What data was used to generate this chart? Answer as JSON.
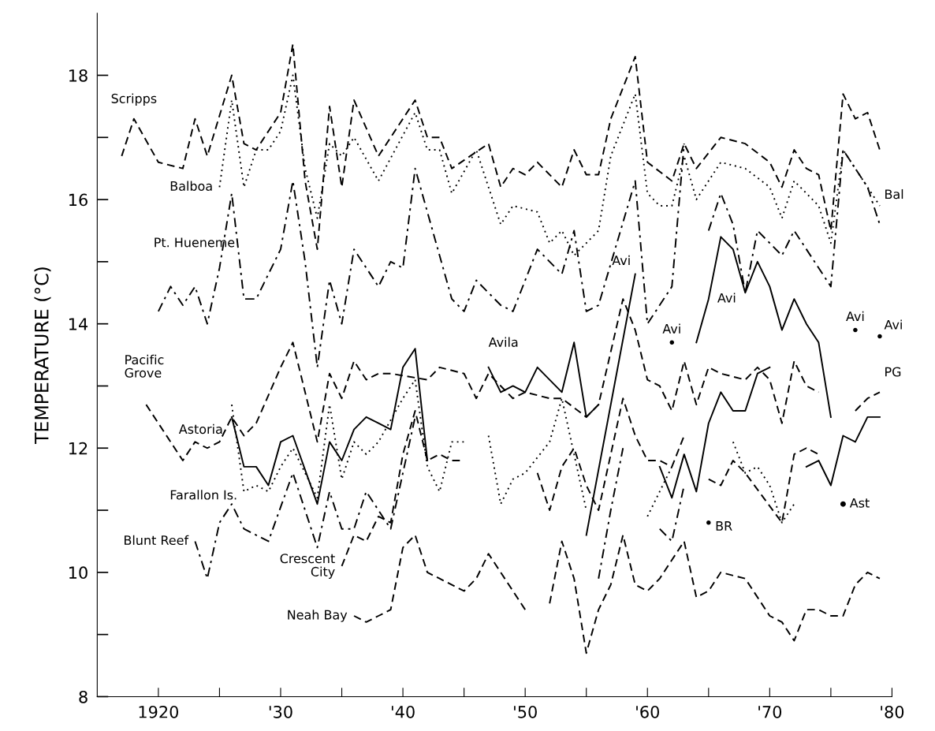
{
  "chart_data": {
    "type": "line",
    "ylabel": "TEMPERATURE (°C)",
    "xlim": [
      1915,
      1980
    ],
    "ylim": [
      8,
      19
    ],
    "xticks": [
      {
        "value": 1920,
        "label": "1920"
      },
      {
        "value": 1925,
        "label": null
      },
      {
        "value": 1930,
        "label": "'30"
      },
      {
        "value": 1935,
        "label": null
      },
      {
        "value": 1940,
        "label": "'40"
      },
      {
        "value": 1945,
        "label": null
      },
      {
        "value": 1950,
        "label": "'50"
      },
      {
        "value": 1955,
        "label": null
      },
      {
        "value": 1960,
        "label": "'60"
      },
      {
        "value": 1965,
        "label": null
      },
      {
        "value": 1970,
        "label": "'70"
      },
      {
        "value": 1975,
        "label": null
      },
      {
        "value": 1980,
        "label": "'80"
      }
    ],
    "yticks": [
      8,
      {
        "value": 9,
        "label": null
      },
      10,
      {
        "value": 11,
        "label": null
      },
      12,
      {
        "value": 13,
        "label": null
      },
      14,
      {
        "value": 15,
        "label": null
      },
      16,
      {
        "value": 17,
        "label": null
      },
      18
    ],
    "grid": false,
    "legend": false,
    "series": [
      {
        "name": "Scripps",
        "color": "#000000",
        "line_style": "dashed",
        "x": [
          1917,
          1918,
          1920,
          1922,
          1923,
          1924,
          1926,
          1927,
          1928,
          1930,
          1931,
          1932,
          1933,
          1934,
          1935,
          1936,
          1938,
          1941,
          1942,
          1943,
          1944,
          1947,
          1948,
          1949,
          1950,
          1951,
          1953,
          1954,
          1955,
          1956,
          1957,
          1959,
          1960,
          1962,
          1963,
          1964,
          1966,
          1968,
          1970,
          1971,
          1972,
          1973,
          1974,
          1975,
          1976,
          1977,
          1978,
          1979
        ],
        "values": [
          16.7,
          17.3,
          16.6,
          16.5,
          17.3,
          16.7,
          18.0,
          16.9,
          16.8,
          17.4,
          18.5,
          16.3,
          15.2,
          17.5,
          16.2,
          17.6,
          16.7,
          17.6,
          17.0,
          17.0,
          16.5,
          16.9,
          16.2,
          16.5,
          16.4,
          16.6,
          16.2,
          16.8,
          16.4,
          16.4,
          17.3,
          18.3,
          16.6,
          16.3,
          16.9,
          16.5,
          17.0,
          16.9,
          16.6,
          16.2,
          16.8,
          16.5,
          16.4,
          15.5,
          17.7,
          17.3,
          17.4,
          16.8
        ]
      },
      {
        "name": "Balboa",
        "color": "#000000",
        "line_style": "dotted",
        "x": [
          1925,
          1926,
          1927,
          1928,
          1929,
          1930,
          1931,
          1932,
          1933,
          1934,
          1935,
          1936,
          1938,
          1941,
          1942,
          1943,
          1944,
          1946,
          1948,
          1949,
          1951,
          1952,
          1953,
          1954,
          1956,
          1957,
          1959,
          1960,
          1961,
          1962,
          1963,
          1964,
          1966,
          1968,
          1970,
          1971,
          1972,
          1974,
          1975,
          1976,
          1979
        ],
        "values": [
          16.2,
          17.6,
          16.2,
          16.8,
          16.8,
          17.1,
          18.0,
          16.5,
          15.7,
          16.9,
          16.7,
          17.0,
          16.3,
          17.4,
          16.8,
          16.8,
          16.1,
          16.8,
          15.6,
          15.9,
          15.8,
          15.3,
          15.5,
          15.1,
          15.5,
          16.7,
          17.7,
          16.1,
          15.9,
          15.9,
          16.7,
          16.0,
          16.6,
          16.5,
          16.2,
          15.7,
          16.3,
          15.9,
          15.3,
          16.8,
          15.9
        ]
      },
      {
        "name": "Pt. Hueneme",
        "color": "#000000",
        "line_style": "dashdot",
        "x": [
          1920,
          1921,
          1922,
          1923,
          1924,
          1925,
          1926,
          1927,
          1928,
          1930,
          1931,
          1932,
          1933,
          1934,
          1935,
          1936,
          1938,
          1939,
          1940,
          1941,
          1944,
          1945,
          1946,
          1948,
          1949,
          1951,
          1953,
          1954,
          1955,
          1956,
          1959,
          1960,
          1962,
          1963,
          1964,
          1965,
          1966,
          1967,
          1968,
          1969,
          1970,
          1971,
          1972,
          1973,
          1974,
          1975,
          1976,
          1977,
          1978,
          1979
        ],
        "values": [
          14.2,
          14.6,
          14.3,
          14.6,
          14.0,
          14.9,
          16.1,
          14.4,
          14.4,
          15.2,
          16.3,
          15.0,
          13.3,
          14.7,
          14.0,
          15.2,
          14.6,
          15.0,
          14.9,
          16.5,
          14.4,
          14.2,
          14.7,
          14.3,
          14.2,
          15.2,
          14.8,
          15.5,
          14.2,
          14.3,
          16.3,
          14.0,
          14.6,
          16.9,
          null,
          15.5,
          16.1,
          15.6,
          14.5,
          15.5,
          15.3,
          15.1,
          15.5,
          15.2,
          14.9,
          14.6,
          16.8,
          16.5,
          16.2,
          15.6
        ]
      },
      {
        "name": "Pacific\nGrove",
        "color": "#000000",
        "line_style": "dashed",
        "x": [
          1919,
          1922,
          1923,
          1924,
          1925,
          1926,
          1927,
          1928,
          1930,
          1931,
          1933,
          1934,
          1935,
          1936,
          1937,
          1938,
          1939,
          1942,
          1943,
          1945,
          1946,
          1947,
          1949,
          1950,
          1952,
          1953,
          1955,
          1956,
          1958,
          1959,
          1960,
          1961,
          1962,
          1963,
          1964,
          1965,
          1966,
          1968,
          1969,
          1970,
          1971,
          1972,
          1973,
          1974,
          1975,
          1977,
          1978,
          1979
        ],
        "values": [
          12.7,
          11.8,
          12.1,
          12.0,
          12.1,
          12.5,
          12.2,
          12.4,
          13.3,
          13.7,
          12.1,
          13.2,
          12.8,
          13.4,
          13.1,
          13.2,
          13.2,
          13.1,
          13.3,
          13.2,
          12.8,
          13.2,
          12.8,
          12.9,
          12.8,
          12.8,
          12.5,
          12.7,
          14.4,
          13.9,
          13.1,
          13.0,
          12.6,
          13.4,
          12.7,
          13.3,
          13.2,
          13.1,
          13.3,
          13.1,
          12.4,
          13.4,
          13.0,
          12.9,
          null,
          12.6,
          12.8,
          12.9
        ]
      },
      {
        "name": "Avila",
        "color": "#000000",
        "line_style": "solid",
        "x": [
          1947,
          1948,
          1949,
          1950,
          1951,
          1953,
          1954,
          1955,
          1956,
          1957,
          1962,
          1963,
          1964,
          1965,
          1966,
          1967,
          1968,
          1969,
          1970,
          1971,
          1972,
          1973,
          1974,
          1975,
          1976,
          1977,
          1978,
          1979
        ],
        "values": [
          13.3,
          12.9,
          13.0,
          12.9,
          13.3,
          12.9,
          13.7,
          12.5,
          12.7,
          null,
          13.7,
          null,
          13.7,
          14.4,
          15.4,
          15.2,
          14.5,
          15.0,
          14.6,
          13.9,
          14.4,
          14.0,
          13.7,
          12.5,
          null,
          13.9,
          null,
          13.8
        ]
      },
      {
        "name": "Astoria",
        "color": "#000000",
        "line_style": "solid",
        "x": [
          1926,
          1927,
          1928,
          1929,
          1930,
          1931,
          1933,
          1934,
          1935,
          1936,
          1937,
          1938,
          1939,
          1940,
          1941,
          1942,
          1943,
          1955,
          1959,
          1960,
          1961,
          1962,
          1963,
          1964,
          1965,
          1966,
          1967,
          1968,
          1969,
          1970,
          1971,
          1973,
          1974,
          1975,
          1976,
          1977,
          1978,
          1979
        ],
        "values": [
          12.5,
          11.7,
          11.7,
          11.4,
          12.1,
          12.2,
          11.1,
          12.1,
          11.8,
          12.3,
          12.5,
          12.4,
          12.3,
          13.3,
          13.6,
          11.8,
          null,
          10.6,
          14.8,
          null,
          11.7,
          11.2,
          11.9,
          11.3,
          12.4,
          12.9,
          12.6,
          12.6,
          13.2,
          13.3,
          null,
          11.7,
          11.8,
          11.4,
          12.2,
          12.1,
          12.5,
          12.5
        ]
      },
      {
        "name": "Farallon Is.",
        "color": "#000000",
        "line_style": "dotted",
        "x": [
          1926,
          1927,
          1928,
          1929,
          1930,
          1931,
          1933,
          1934,
          1935,
          1936,
          1937,
          1938,
          1940,
          1941,
          1942,
          1943,
          1944,
          1945,
          1946,
          1947,
          1948,
          1949,
          1950,
          1952,
          1953,
          1955,
          1956,
          1960,
          1961,
          1962,
          1963,
          1967,
          1968,
          1969,
          1970,
          1971,
          1972
        ],
        "values": [
          12.7,
          11.3,
          11.4,
          11.3,
          11.7,
          12.0,
          11.2,
          12.7,
          11.5,
          12.1,
          11.9,
          12.1,
          12.8,
          13.1,
          11.7,
          11.3,
          12.1,
          12.1,
          null,
          12.2,
          11.1,
          11.5,
          11.6,
          12.1,
          12.8,
          11.0,
          null,
          10.9,
          11.3,
          11.7,
          null,
          12.1,
          11.6,
          11.7,
          11.4,
          10.8,
          11.1
        ]
      },
      {
        "name": "Blunt Reef",
        "color": "#000000",
        "line_style": "dashdot",
        "x": [
          1923,
          1924,
          1925,
          1926,
          1927,
          1928,
          1929,
          1931,
          1933,
          1934,
          1935,
          1936,
          1937,
          1938,
          1939,
          1940,
          1941,
          1942,
          1956,
          1957,
          1958,
          1959,
          1961,
          1962,
          1963,
          1964,
          1965
        ],
        "values": [
          10.5,
          9.9,
          10.8,
          11.1,
          10.7,
          10.6,
          10.5,
          11.6,
          10.4,
          11.3,
          10.7,
          10.7,
          11.3,
          11.0,
          10.7,
          11.6,
          12.5,
          null,
          9.9,
          11.0,
          12.0,
          null,
          10.7,
          10.5,
          11.4,
          null,
          10.8
        ]
      },
      {
        "name": "Crescent\nCity",
        "color": "#000000",
        "line_style": "dashed",
        "x": [
          1935,
          1936,
          1937,
          1938,
          1939,
          1940,
          1941,
          1942,
          1943,
          1944,
          1945,
          1946,
          1951,
          1952,
          1953,
          1954,
          1955,
          1956,
          1957,
          1958,
          1959,
          1960,
          1961,
          1962,
          1963,
          1964,
          1965,
          1966,
          1967,
          1968,
          1971,
          1972,
          1973,
          1974
        ],
        "values": [
          10.1,
          10.6,
          10.5,
          10.9,
          10.8,
          11.9,
          12.6,
          11.8,
          11.9,
          11.8,
          11.8,
          null,
          11.6,
          11.0,
          11.7,
          12.0,
          11.4,
          11.0,
          11.9,
          12.8,
          12.2,
          11.8,
          11.8,
          11.7,
          12.2,
          null,
          11.5,
          11.4,
          11.8,
          11.6,
          10.8,
          11.9,
          12.0,
          11.9
        ]
      },
      {
        "name": "Neah Bay",
        "color": "#000000",
        "line_style": "dashed",
        "x": [
          1936,
          1937,
          1938,
          1939,
          1940,
          1941,
          1942,
          1943,
          1945,
          1946,
          1947,
          1948,
          1949,
          1950,
          1951,
          1952,
          1953,
          1954,
          1955,
          1956,
          1957,
          1958,
          1959,
          1960,
          1961,
          1963,
          1964,
          1965,
          1966,
          1968,
          1969,
          1970,
          1971,
          1972,
          1973,
          1974,
          1975,
          1976,
          1977,
          1978,
          1979
        ],
        "values": [
          9.3,
          9.2,
          9.3,
          9.4,
          10.4,
          10.6,
          10.0,
          9.9,
          9.7,
          9.9,
          10.3,
          10.0,
          9.7,
          9.4,
          null,
          9.5,
          10.5,
          9.9,
          8.7,
          9.4,
          9.8,
          10.6,
          9.8,
          9.7,
          9.9,
          10.5,
          9.6,
          9.7,
          10.0,
          9.9,
          9.6,
          9.3,
          9.2,
          8.9,
          9.4,
          9.4,
          9.3,
          9.3,
          9.8,
          10.0,
          9.9
        ]
      },
      {
        "color": "#000000",
        "line_style": "solid",
        "marker": "circle",
        "x": [
          1976
        ],
        "values": [
          11.1
        ]
      }
    ],
    "annotations": [
      {
        "text": "Avi",
        "x": 1959,
        "y": 14.8
      },
      {
        "text": "Avi",
        "x": 1962,
        "y": 13.7
      },
      {
        "text": "Avi",
        "x": 1965,
        "y": 14.4
      },
      {
        "text": "Avi",
        "x": 1977,
        "y": 13.9
      },
      {
        "text": "Avi",
        "x": 1979,
        "y": 13.8
      },
      {
        "text": "Bal",
        "x": 1979,
        "y": 15.9
      },
      {
        "text": "PG",
        "x": 1979,
        "y": 12.9
      },
      {
        "text": "Ast",
        "x": 1976,
        "y": 11.1
      },
      {
        "text": "BR",
        "x": 1965,
        "y": 10.8
      }
    ]
  }
}
